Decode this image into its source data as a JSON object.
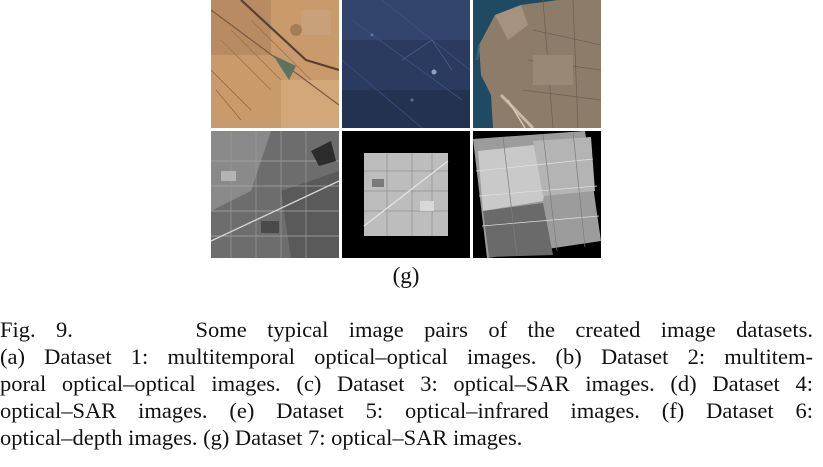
{
  "figure": {
    "panels": [
      {
        "row": 1,
        "col": 1,
        "kind": "optical desert scene"
      },
      {
        "row": 1,
        "col": 2,
        "kind": "optical dark blue scene"
      },
      {
        "row": 1,
        "col": 3,
        "kind": "optical coastal city"
      },
      {
        "row": 2,
        "col": 1,
        "kind": "SAR urban grayscale"
      },
      {
        "row": 2,
        "col": 2,
        "kind": "SAR square patch on black"
      },
      {
        "row": 2,
        "col": 3,
        "kind": "SAR rotated bright scene"
      }
    ],
    "sublabel": "(g)"
  },
  "caption": {
    "label": "Fig. 9.",
    "lines": [
      "Some typical image pairs of the created image datasets.",
      "(a) Dataset 1: multitemporal optical–optical images. (b) Dataset 2: multitem-",
      "poral optical–optical images. (c) Dataset 3: optical–SAR images. (d) Dataset 4:",
      "optical–SAR images. (e) Dataset 5: optical–infrared images. (f) Dataset 6:",
      "optical–depth images. (g) Dataset 7: optical–SAR images."
    ]
  }
}
